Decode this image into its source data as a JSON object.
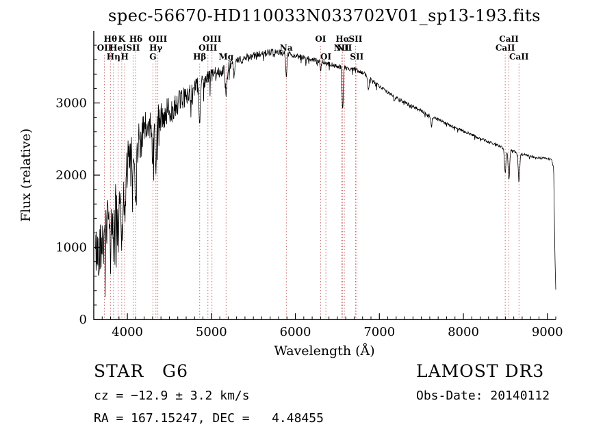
{
  "title": "spec-56670-HD110033N033702V01_sp13-193.fits",
  "chart_data": {
    "type": "line",
    "title": "spec-56670-HD110033N033702V01_sp13-193.fits",
    "xlabel": "Wavelength (Å)",
    "ylabel": "Flux (relative)",
    "xlim": [
      3600,
      9100
    ],
    "ylim": [
      0,
      4000
    ],
    "x_ticks": [
      4000,
      5000,
      6000,
      7000,
      8000,
      9000
    ],
    "y_ticks": [
      0,
      1000,
      2000,
      3000
    ],
    "x_minor_step": 100,
    "y_minor_step": 200,
    "grid": false,
    "legend": "none",
    "series_color": "#000000",
    "marker_line_color": "#c05555",
    "marker_label_color": "#7a1f1f",
    "spectrum_envelope": [
      [
        3620,
        900
      ],
      [
        3680,
        1060
      ],
      [
        3750,
        1260
      ],
      [
        3850,
        1560
      ],
      [
        3950,
        1920
      ],
      [
        4000,
        2140
      ],
      [
        4100,
        2360
      ],
      [
        4200,
        2600
      ],
      [
        4300,
        2700
      ],
      [
        4400,
        2800
      ],
      [
        4500,
        2900
      ],
      [
        4600,
        3000
      ],
      [
        4700,
        3100
      ],
      [
        4800,
        3200
      ],
      [
        4900,
        3300
      ],
      [
        5000,
        3380
      ],
      [
        5100,
        3440
      ],
      [
        5200,
        3500
      ],
      [
        5300,
        3570
      ],
      [
        5400,
        3620
      ],
      [
        5500,
        3650
      ],
      [
        5600,
        3680
      ],
      [
        5700,
        3700
      ],
      [
        5800,
        3700
      ],
      [
        5900,
        3690
      ],
      [
        6000,
        3650
      ],
      [
        6100,
        3630
      ],
      [
        6200,
        3600
      ],
      [
        6300,
        3570
      ],
      [
        6400,
        3540
      ],
      [
        6500,
        3510
      ],
      [
        6600,
        3490
      ],
      [
        6700,
        3470
      ],
      [
        6800,
        3420
      ],
      [
        6900,
        3330
      ],
      [
        7000,
        3230
      ],
      [
        7100,
        3150
      ],
      [
        7200,
        3080
      ],
      [
        7300,
        3010
      ],
      [
        7400,
        2950
      ],
      [
        7500,
        2890
      ],
      [
        7600,
        2830
      ],
      [
        7700,
        2770
      ],
      [
        7800,
        2710
      ],
      [
        7900,
        2660
      ],
      [
        8000,
        2610
      ],
      [
        8100,
        2560
      ],
      [
        8200,
        2510
      ],
      [
        8300,
        2460
      ],
      [
        8400,
        2420
      ],
      [
        8500,
        2370
      ],
      [
        8600,
        2330
      ],
      [
        8700,
        2290
      ],
      [
        8800,
        2260
      ],
      [
        8900,
        2240
      ],
      [
        9000,
        2230
      ],
      [
        9050,
        2220
      ],
      [
        9075,
        2100
      ],
      [
        9090,
        900
      ],
      [
        9100,
        420
      ]
    ],
    "absorption_dips": [
      [
        3727,
        280,
        7
      ],
      [
        3798,
        520,
        7
      ],
      [
        3835,
        520,
        7
      ],
      [
        3889,
        600,
        8
      ],
      [
        3933,
        720,
        9
      ],
      [
        3968,
        700,
        9
      ],
      [
        4068,
        320,
        7
      ],
      [
        4101,
        680,
        9
      ],
      [
        4304,
        380,
        11
      ],
      [
        4340,
        620,
        9
      ],
      [
        4861,
        520,
        8
      ],
      [
        5175,
        330,
        11
      ],
      [
        5270,
        180,
        7
      ],
      [
        5892,
        320,
        7
      ],
      [
        6300,
        130,
        6
      ],
      [
        6563,
        600,
        7
      ],
      [
        6870,
        170,
        8
      ],
      [
        7180,
        90,
        7
      ],
      [
        7620,
        130,
        8
      ],
      [
        8498,
        340,
        9
      ],
      [
        8542,
        420,
        9
      ],
      [
        8662,
        380,
        9
      ]
    ],
    "noise_profile": [
      [
        3600,
        380
      ],
      [
        4000,
        330
      ],
      [
        4300,
        240
      ],
      [
        4600,
        160
      ],
      [
        5000,
        95
      ],
      [
        5300,
        60
      ],
      [
        6000,
        38
      ],
      [
        7000,
        26
      ],
      [
        8000,
        20
      ],
      [
        9100,
        16
      ]
    ],
    "spectral_lines": [
      {
        "wavelength": 3727,
        "label": "OII",
        "row": 2
      },
      {
        "wavelength": 3798,
        "label": "Hθ",
        "row": 1
      },
      {
        "wavelength": 3835,
        "label": "Hη",
        "row": 3
      },
      {
        "wavelength": 3889,
        "label": "HeI",
        "row": 2
      },
      {
        "wavelength": 3933,
        "label": "K",
        "row": 1
      },
      {
        "wavelength": 3968,
        "label": "H",
        "row": 3
      },
      {
        "wavelength": 4068,
        "label": "SII",
        "row": 2
      },
      {
        "wavelength": 4101,
        "label": "Hδ",
        "row": 1
      },
      {
        "wavelength": 4304,
        "label": "G",
        "row": 3
      },
      {
        "wavelength": 4340,
        "label": "Hγ",
        "row": 2
      },
      {
        "wavelength": 4363,
        "label": "OIII",
        "row": 1
      },
      {
        "wavelength": 4861,
        "label": "Hβ",
        "row": 3
      },
      {
        "wavelength": 4959,
        "label": "OIII",
        "row": 2
      },
      {
        "wavelength": 5007,
        "label": "OIII",
        "row": 1
      },
      {
        "wavelength": 5175,
        "label": "Mg",
        "row": 3
      },
      {
        "wavelength": 5892,
        "label": "Na",
        "row": 2
      },
      {
        "wavelength": 6300,
        "label": "OI",
        "row": 1
      },
      {
        "wavelength": 6363,
        "label": "OI",
        "row": 3
      },
      {
        "wavelength": 6548,
        "label": "NII",
        "row": 2
      },
      {
        "wavelength": 6563,
        "label": "Hα",
        "row": 1
      },
      {
        "wavelength": 6583,
        "label": "NII",
        "row": 2
      },
      {
        "wavelength": 6716,
        "label": "SII",
        "row": 1
      },
      {
        "wavelength": 6731,
        "label": "SII",
        "row": 3
      },
      {
        "wavelength": 8498,
        "label": "CaII",
        "row": 2
      },
      {
        "wavelength": 8542,
        "label": "CaII",
        "row": 1
      },
      {
        "wavelength": 8662,
        "label": "CaII",
        "row": 3
      }
    ]
  },
  "annotations": {
    "object_type": "STAR   G6",
    "survey": "LAMOST DR3",
    "cz": "cz = −12.9 ± 3.2 km/s",
    "obs_date": "Obs-Date: 20140112",
    "radec": "RA = 167.15247, DEC =   4.48455"
  }
}
